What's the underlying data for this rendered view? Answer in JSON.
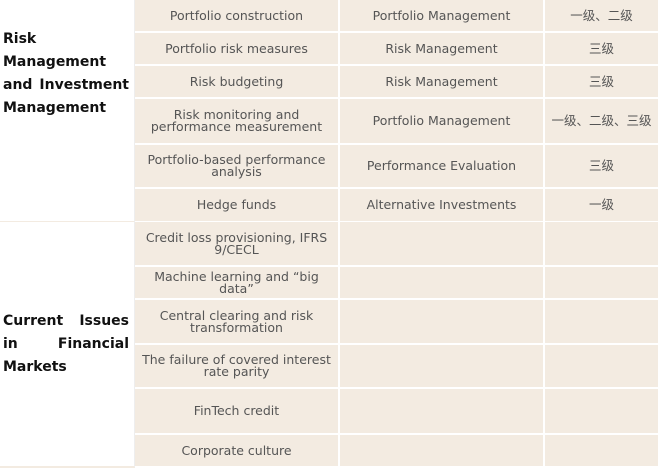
{
  "table": {
    "groups": [
      {
        "label": "Risk Management and Investment Management",
        "rows": [
          [
            "Portfolio construction",
            "Portfolio Management",
            "一级、二级"
          ],
          [
            "Portfolio risk measures",
            "Risk Management",
            "三级"
          ],
          [
            "Risk budgeting",
            "Risk Management",
            "三级"
          ],
          [
            "Risk monitoring and performance measurement",
            "Portfolio Management",
            "一级、二级、三级"
          ],
          [
            "Portfolio-based performance analysis",
            "Performance Evaluation",
            "三级"
          ],
          [
            "Hedge funds",
            "Alternative Investments",
            "一级"
          ]
        ]
      },
      {
        "label": "Current Issues in Financial Markets",
        "rows": [
          [
            "Credit loss provisioning, IFRS 9/CECL"
          ],
          [
            "Machine learning and “big data”"
          ],
          [
            "Central clearing and risk transformation"
          ],
          [
            "The failure of covered interest rate parity"
          ],
          [
            "FinTech credit"
          ],
          [
            "Corporate culture"
          ]
        ]
      }
    ]
  }
}
